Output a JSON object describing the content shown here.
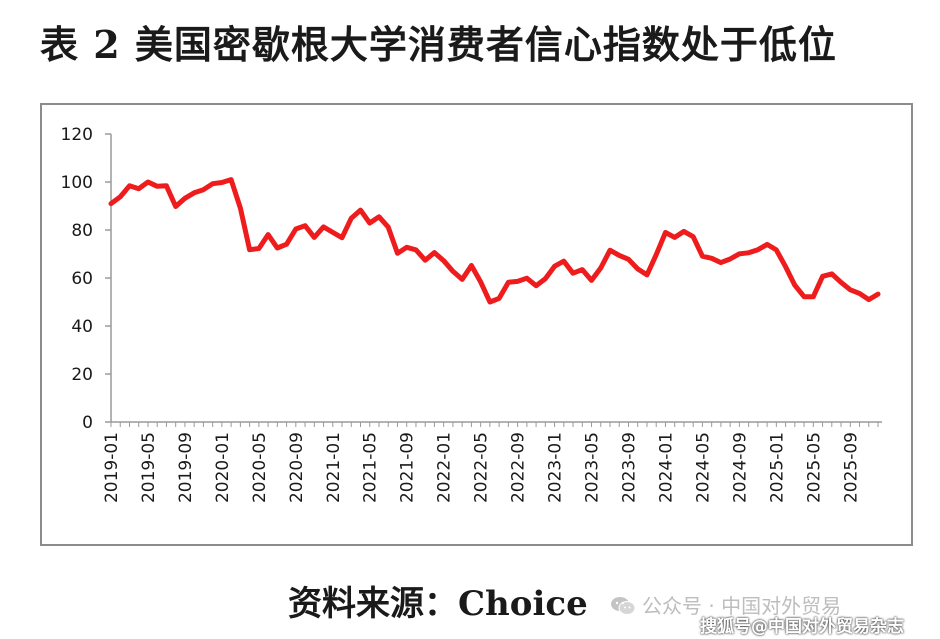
{
  "title": "表 2  美国密歇根大学消费者信心指数处于低位",
  "source": "资料来源：Choice",
  "watermark": {
    "line1": "公众号 · 中国对外贸易",
    "line2": "搜狐号@中国对外贸易杂志",
    "icon": "wechat-icon"
  },
  "colors": {
    "line": "#ee1c1c",
    "axis": "#9a9a9a",
    "text": "#1a1a1a"
  },
  "chart_data": {
    "type": "line",
    "title": "",
    "xlabel": "",
    "ylabel": "",
    "ylim": [
      0,
      120
    ],
    "yticks": [
      0,
      20,
      40,
      60,
      80,
      100,
      120
    ],
    "grid": false,
    "legend": "none",
    "xtick_labels": [
      "2019-01",
      "2019-05",
      "2019-09",
      "2020-01",
      "2020-05",
      "2020-09",
      "2021-01",
      "2021-05",
      "2021-09",
      "2022-01",
      "2022-05",
      "2022-09",
      "2023-01",
      "2023-05",
      "2023-09",
      "2024-01",
      "2024-05",
      "2024-09",
      "2025-01",
      "2025-05",
      "2025-09"
    ],
    "series": [
      {
        "name": "",
        "values": [
          91,
          93.8,
          98.4,
          97.2,
          100,
          98.2,
          98.4,
          89.8,
          93.2,
          95.5,
          96.8,
          99.3,
          99.8,
          101,
          89.1,
          71.8,
          72.3,
          78.1,
          72.5,
          74.1,
          80.4,
          81.8,
          76.9,
          81.3,
          79,
          76.8,
          84.9,
          88.3,
          82.9,
          85.5,
          81.2,
          70.3,
          72.8,
          71.7,
          67.4,
          70.6,
          67.2,
          62.8,
          59.4,
          65.2,
          58.4,
          50.0,
          51.5,
          58.2,
          58.6,
          59.9,
          56.8,
          59.7,
          64.9,
          67.0,
          62.0,
          63.5,
          59.0,
          64.2,
          71.6,
          69.4,
          67.8,
          63.8,
          61.3,
          69.7,
          79.0,
          76.9,
          79.4,
          77.2,
          69.1,
          68.2,
          66.4,
          67.9,
          70.1,
          70.5,
          71.8,
          74.0,
          71.7,
          64.7,
          57.0,
          52.2,
          52.2,
          60.7,
          61.7,
          58.2,
          55.1,
          53.6,
          51.0,
          53.3
        ]
      }
    ]
  }
}
